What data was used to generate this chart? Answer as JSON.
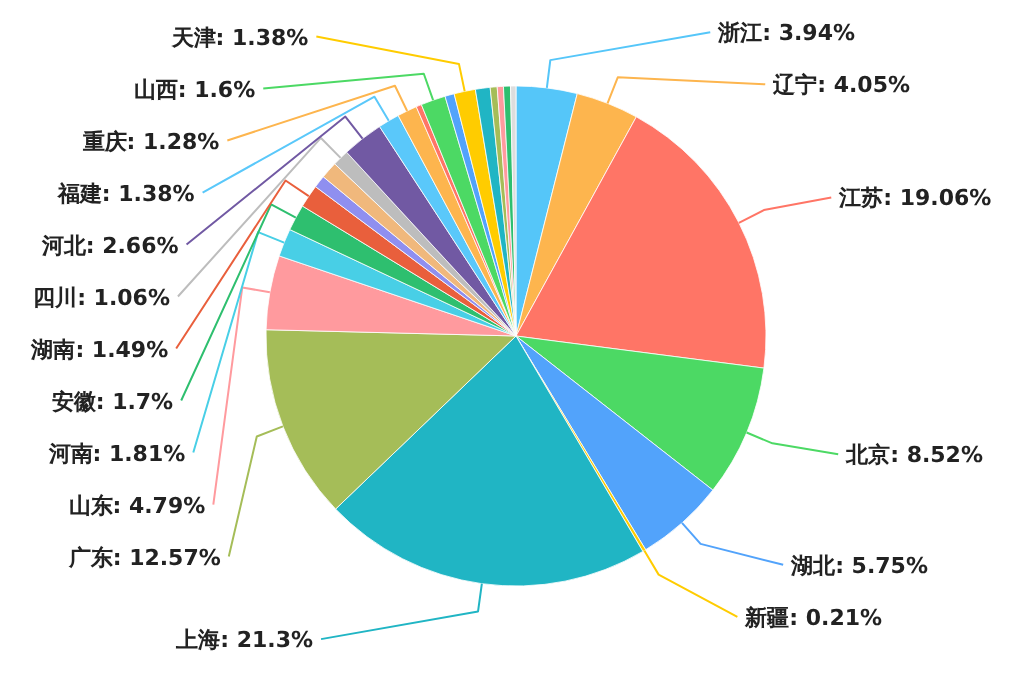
{
  "chart_data": {
    "type": "pie",
    "categories": [
      "浙江",
      "辽宁",
      "江苏",
      "北京",
      "湖北",
      "新疆",
      "上海",
      "广东",
      "山东",
      "河南",
      "安徽",
      "湖南",
      null,
      null,
      "四川",
      "河北",
      "福建",
      "重庆",
      null,
      "山西",
      null,
      "天津",
      null,
      null,
      null,
      null,
      null
    ],
    "values": [
      3.94,
      4.05,
      19.06,
      8.52,
      5.75,
      0.21,
      21.3,
      12.57,
      4.79,
      1.81,
      1.7,
      1.49,
      0.8,
      1.1,
      1.06,
      2.66,
      1.38,
      1.28,
      0.35,
      1.6,
      0.6,
      1.38,
      0.95,
      0.45,
      0.4,
      0.45,
      0.35
    ],
    "value_labels": [
      "3.94%",
      "4.05%",
      "19.06%",
      "8.52%",
      "5.75%",
      "0.21%",
      "21.3%",
      "12.57%",
      "4.79%",
      "1.81%",
      "1.7%",
      "1.49%",
      null,
      null,
      "1.06%",
      "2.66%",
      "1.38%",
      "1.28%",
      null,
      "1.6%",
      null,
      "1.38%",
      null,
      null,
      null,
      null,
      null
    ],
    "colors": [
      "#55c6f9",
      "#fdb54e",
      "#ff7566",
      "#4cd964",
      "#52a3fb",
      "#ffcc00",
      "#20b5c4",
      "#a5bd58",
      "#ff9a9e",
      "#48cfe6",
      "#2ebf6f",
      "#e95f3c",
      "#8f8ff0",
      "#f0b87c",
      "#bdbdbd",
      "#7159a3",
      "#5ac8fa",
      "#fdb54e",
      "#ff7566",
      "#4cd964",
      "#52a3fb",
      "#ffcc00",
      "#20b5c4",
      "#a5bd58",
      "#ff9a9e",
      "#2ebf6f",
      "#dddddd"
    ]
  }
}
